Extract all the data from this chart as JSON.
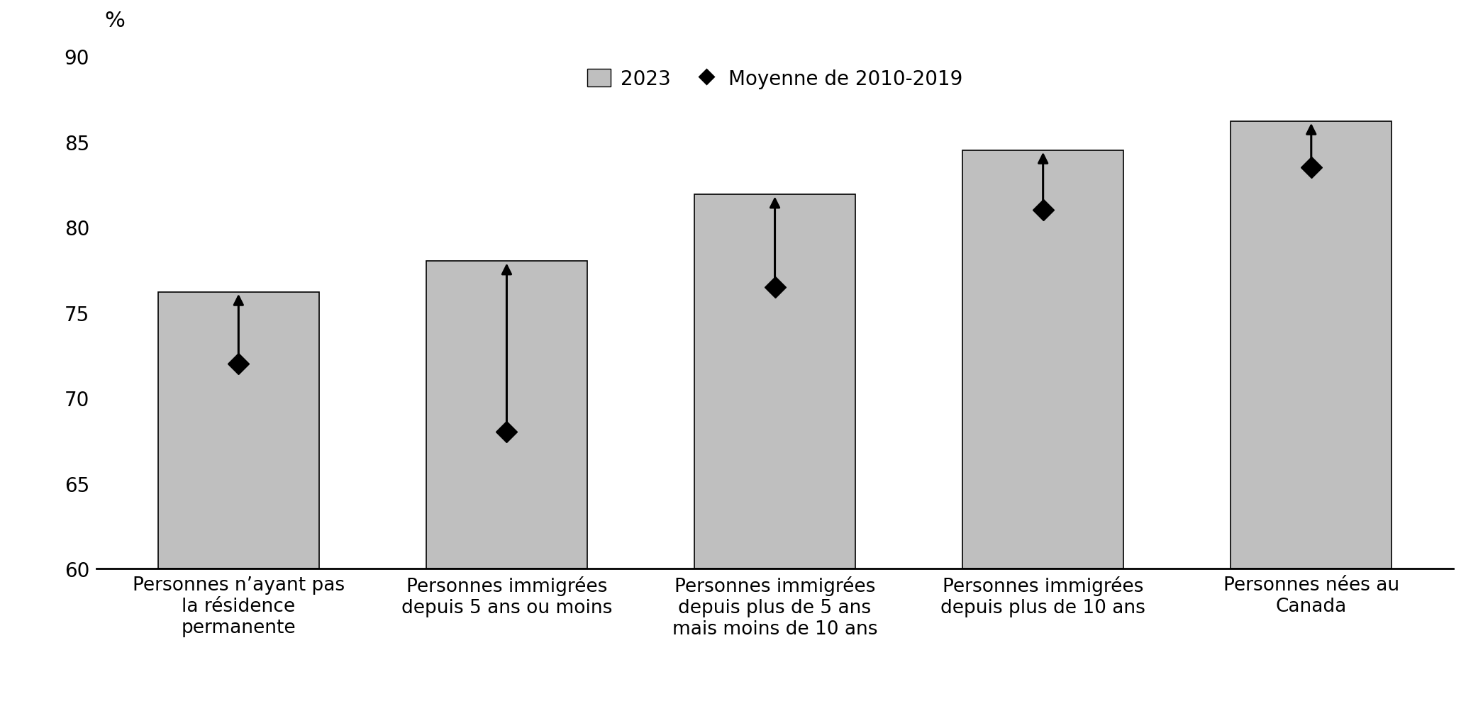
{
  "categories": [
    "Personnes n’ayant pas\nla résidence\npermanente",
    "Personnes immigrées\ndepuis 5 ans ou moins",
    "Personnes immigrées\ndepuis plus de 5 ans\nmais moins de 10 ans",
    "Personnes immigrées\ndepuis plus de 10 ans",
    "Personnes nées au\nCanada"
  ],
  "bar_values": [
    76.2,
    78.0,
    81.9,
    84.5,
    86.2
  ],
  "mean_values": [
    72.0,
    68.0,
    76.5,
    81.0,
    83.5
  ],
  "bar_color": "#BFBFBF",
  "bar_edgecolor": "#000000",
  "mean_marker_color": "#000000",
  "arrow_color": "#000000",
  "ylim": [
    60,
    90
  ],
  "yticks": [
    60,
    65,
    70,
    75,
    80,
    85,
    90
  ],
  "ylabel": "%",
  "legend_bar_label": "2023",
  "legend_mean_label": "Moyenne de 2010-2019",
  "background_color": "#ffffff",
  "bar_width": 0.6,
  "fontsize_ticks": 20,
  "fontsize_ylabel": 22,
  "fontsize_legend": 20,
  "fontsize_xticklabels": 19
}
